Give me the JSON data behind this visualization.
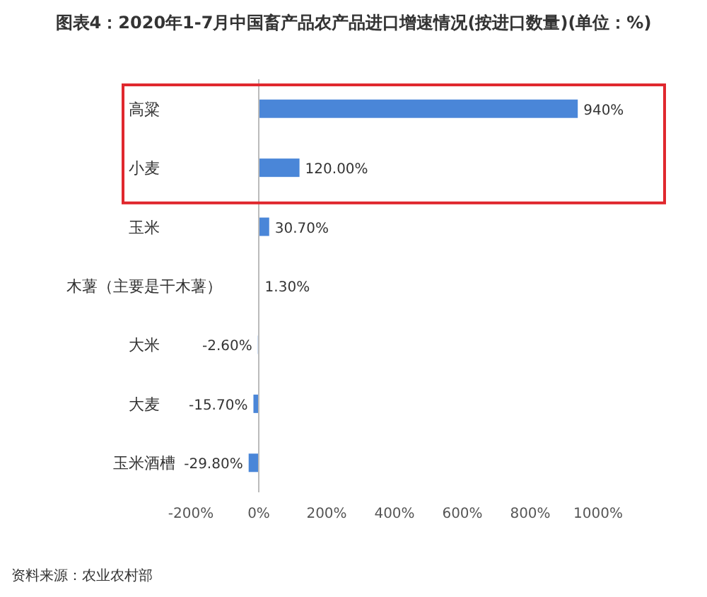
{
  "chart_data": {
    "type": "bar",
    "orientation": "horizontal",
    "title": "图表4：2020年1-7月中国畜产品农产品进口增速情况(按进口数量)(单位：%)",
    "categories": [
      "高粱",
      "小麦",
      "玉米",
      "木薯（主要是干木薯）",
      "大米",
      "大麦",
      "玉米酒槽"
    ],
    "values": [
      940,
      120.0,
      30.7,
      1.3,
      -2.6,
      -15.7,
      -29.8
    ],
    "value_labels": [
      "940%",
      "120.00%",
      "30.70%",
      "1.30%",
      "-2.60%",
      "-15.70%",
      "-29.80%"
    ],
    "color": "#4a86d8",
    "xlim": [
      -200,
      1000
    ],
    "xticks": [
      {
        "value": -200,
        "label": "-200%"
      },
      {
        "value": 0,
        "label": "0%"
      },
      {
        "value": 200,
        "label": "200%"
      },
      {
        "value": 400,
        "label": "400%"
      },
      {
        "value": 600,
        "label": "600%"
      },
      {
        "value": 800,
        "label": "800%"
      },
      {
        "value": 1000,
        "label": "1000%"
      }
    ],
    "grid": false,
    "annotations": [
      "资料来源：农业农村部"
    ]
  }
}
